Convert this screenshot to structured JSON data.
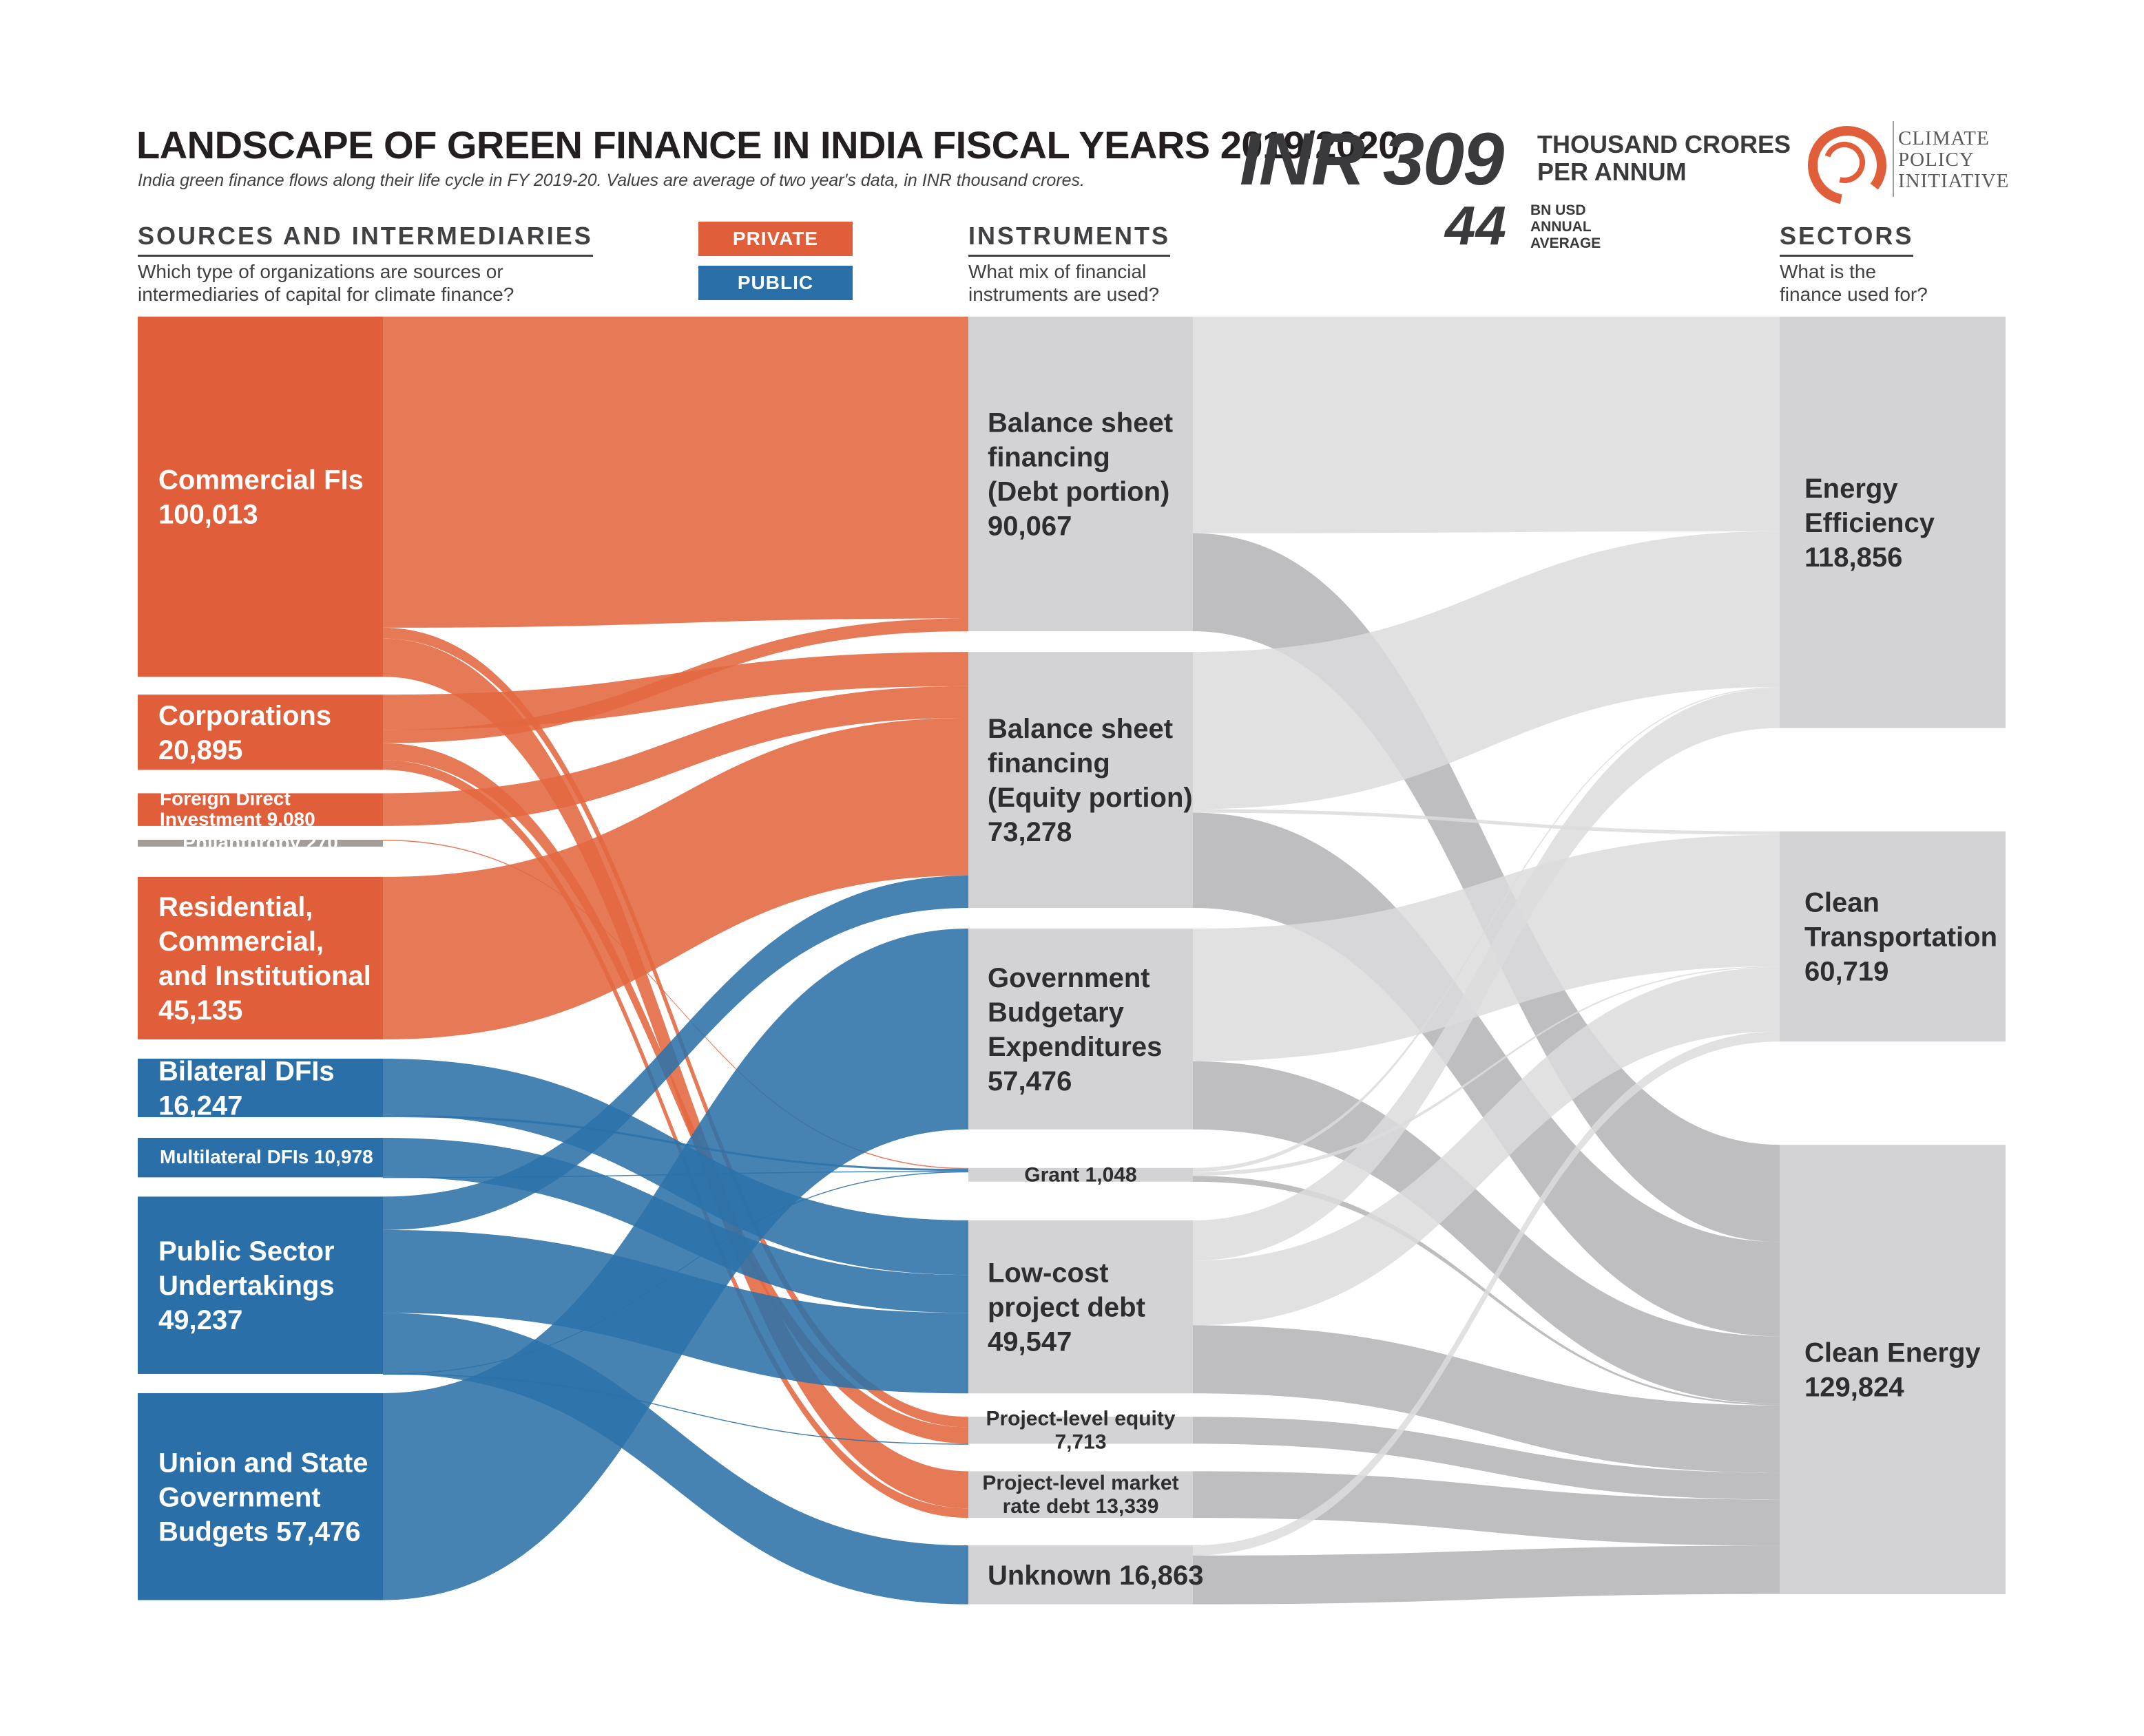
{
  "title": "LANDSCAPE OF GREEN FINANCE IN INDIA FISCAL YEARS 2019/2020",
  "subtitle": "India green finance flows along their life cycle in FY 2019-20. Values are average of two year's data, in INR thousand crores.",
  "total": {
    "value": "INR 309",
    "unit_line1": "THOUSAND CRORES",
    "unit_line2": "PER ANNUM",
    "usd_value": "44",
    "usd_unit_line1": "BN USD",
    "usd_unit_line2": "ANNUAL",
    "usd_unit_line3": "AVERAGE"
  },
  "logo": {
    "line1": "CLIMATE",
    "line2": "POLICY",
    "line3": "INITIATIVE"
  },
  "columns": {
    "sources": {
      "title": "SOURCES AND INTERMEDIARIES",
      "question_line1": "Which type of organizations are sources or",
      "question_line2": "intermediaries of capital for climate finance?"
    },
    "instruments": {
      "title": "INSTRUMENTS",
      "question_line1": "What mix of financial",
      "question_line2": "instruments are used?"
    },
    "sectors": {
      "title": "SECTORS",
      "question_line1": "What is the",
      "question_line2": "finance used for?"
    }
  },
  "legend": {
    "private": "PRIVATE",
    "public": "PUBLIC"
  },
  "colors": {
    "private": "#e05f3a",
    "public": "#2a6fa8",
    "private_flow": "#e36840",
    "public_flow": "#2c72a9",
    "neutral": "#a39d99",
    "instrument_node": "#d3d3d5",
    "sector_node": "#d3d3d5",
    "flow_grey": "#b3b3b5",
    "flow_light": "#dcdcdd"
  },
  "chart_data": {
    "type": "sankey",
    "units": "INR thousand crores",
    "sources": [
      {
        "id": "commercial",
        "name": "Commercial FIs",
        "value": 100013,
        "type": "private",
        "lines": [
          "Commercial FIs",
          "100,013"
        ]
      },
      {
        "id": "corporations",
        "name": "Corporations",
        "value": 20895,
        "type": "private",
        "lines": [
          "Corporations",
          "20,895"
        ]
      },
      {
        "id": "fdi",
        "name": "Foreign Direct Investment",
        "value": 9080,
        "type": "private",
        "lines": [
          "Foreign Direct",
          "Investment 9,080"
        ]
      },
      {
        "id": "philanthropy",
        "name": "Philanthropy",
        "value": 270,
        "type": "neutral",
        "lines": [
          "Philanthropy 270"
        ]
      },
      {
        "id": "residential",
        "name": "Residential, Commercial, and Institutional",
        "value": 45135,
        "type": "private",
        "lines": [
          "Residential,",
          "Commercial,",
          "and Institutional",
          "45,135"
        ]
      },
      {
        "id": "bilateral",
        "name": "Bilateral DFIs",
        "value": 16247,
        "type": "public",
        "lines": [
          "Bilateral DFIs",
          "16,247"
        ]
      },
      {
        "id": "multilateral",
        "name": "Multilateral DFIs",
        "value": 10978,
        "type": "public",
        "lines": [
          "Multilateral DFIs 10,978"
        ]
      },
      {
        "id": "psu",
        "name": "Public Sector Undertakings",
        "value": 49237,
        "type": "public",
        "lines": [
          "Public Sector",
          "Undertakings",
          "49,237"
        ]
      },
      {
        "id": "budgets",
        "name": "Union and State Government Budgets",
        "value": 57476,
        "type": "public",
        "lines": [
          "Union and State",
          "Government",
          "Budgets 57,476"
        ]
      }
    ],
    "instruments": [
      {
        "id": "bsdebt",
        "name": "Balance sheet financing (Debt portion)",
        "value": 90067,
        "lines": [
          "Balance sheet",
          "financing",
          "(Debt portion)",
          "90,067"
        ]
      },
      {
        "id": "bsequity",
        "name": "Balance sheet financing (Equity portion)",
        "value": 73278,
        "lines": [
          "Balance sheet",
          "financing",
          "(Equity portion)",
          "73,278"
        ]
      },
      {
        "id": "gbe",
        "name": "Government Budgetary Expenditures",
        "value": 57476,
        "lines": [
          "Government",
          "Budgetary",
          "Expenditures",
          "57,476"
        ]
      },
      {
        "id": "grant",
        "name": "Grant",
        "value": 1048,
        "lines": [
          "Grant 1,048"
        ]
      },
      {
        "id": "lowcost",
        "name": "Low-cost project debt",
        "value": 49547,
        "lines": [
          "Low-cost",
          "project debt",
          "49,547"
        ]
      },
      {
        "id": "plequity",
        "name": "Project-level equity",
        "value": 7713,
        "lines": [
          "Project-level equity",
          "7,713"
        ]
      },
      {
        "id": "plmarket",
        "name": "Project-level market rate debt",
        "value": 13339,
        "lines": [
          "Project-level market",
          "rate debt 13,339"
        ]
      },
      {
        "id": "unknown",
        "name": "Unknown",
        "value": 16863,
        "lines": [
          "Unknown 16,863"
        ]
      }
    ],
    "sectors": [
      {
        "id": "ee",
        "name": "Energy Efficiency",
        "value": 118856,
        "lines": [
          "Energy",
          "Efficiency",
          "118,856"
        ]
      },
      {
        "id": "ct",
        "name": "Clean Transportation",
        "value": 60719,
        "lines": [
          "Clean",
          "Transportation",
          "60,719"
        ]
      },
      {
        "id": "ce",
        "name": "Clean Energy",
        "value": 129824,
        "lines": [
          "Clean Energy",
          "129,824"
        ]
      }
    ],
    "flows_source_to_instrument": [
      {
        "from": "commercial",
        "to": "bsdebt",
        "value": 86400
      },
      {
        "from": "commercial",
        "to": "plequity",
        "value": 3000
      },
      {
        "from": "commercial",
        "to": "plmarket",
        "value": 10613
      },
      {
        "from": "corporations",
        "to": "bsequity",
        "value": 9800
      },
      {
        "from": "corporations",
        "to": "bsdebt",
        "value": 3667
      },
      {
        "from": "corporations",
        "to": "plequity",
        "value": 4700
      },
      {
        "from": "corporations",
        "to": "plmarket",
        "value": 2728
      },
      {
        "from": "fdi",
        "to": "bsequity",
        "value": 9080
      },
      {
        "from": "philanthropy",
        "to": "grant",
        "value": 270
      },
      {
        "from": "residential",
        "to": "bsequity",
        "value": 45135
      },
      {
        "from": "bilateral",
        "to": "lowcost",
        "value": 15640
      },
      {
        "from": "bilateral",
        "to": "grant",
        "value": 607
      },
      {
        "from": "multilateral",
        "to": "lowcost",
        "value": 10878
      },
      {
        "from": "multilateral",
        "to": "grant",
        "value": 100
      },
      {
        "from": "psu",
        "to": "bsequity",
        "value": 9263
      },
      {
        "from": "psu",
        "to": "lowcost",
        "value": 23029
      },
      {
        "from": "psu",
        "to": "unknown",
        "value": 16863
      },
      {
        "from": "psu",
        "to": "plequity",
        "value": 13
      },
      {
        "from": "psu",
        "to": "grant",
        "value": 69
      },
      {
        "from": "budgets",
        "to": "gbe",
        "value": 57476
      }
    ],
    "flows_instrument_to_sector": [
      {
        "from": "bsdebt",
        "to": "ee",
        "value": 62000
      },
      {
        "from": "bsdebt",
        "to": "ce",
        "value": 28067
      },
      {
        "from": "bsequity",
        "to": "ee",
        "value": 45000
      },
      {
        "from": "bsequity",
        "to": "ct",
        "value": 1000
      },
      {
        "from": "bsequity",
        "to": "ce",
        "value": 27278
      },
      {
        "from": "gbe",
        "to": "ct",
        "value": 38000
      },
      {
        "from": "gbe",
        "to": "ce",
        "value": 19476
      },
      {
        "from": "grant",
        "to": "ee",
        "value": 300
      },
      {
        "from": "grant",
        "to": "ct",
        "value": 300
      },
      {
        "from": "grant",
        "to": "ce",
        "value": 448
      },
      {
        "from": "lowcost",
        "to": "ee",
        "value": 11556
      },
      {
        "from": "lowcost",
        "to": "ct",
        "value": 18519
      },
      {
        "from": "lowcost",
        "to": "ce",
        "value": 19472
      },
      {
        "from": "plequity",
        "to": "ce",
        "value": 7713
      },
      {
        "from": "plmarket",
        "to": "ce",
        "value": 13339
      },
      {
        "from": "unknown",
        "to": "ct",
        "value": 2900
      },
      {
        "from": "unknown",
        "to": "ce",
        "value": 13963
      }
    ]
  }
}
